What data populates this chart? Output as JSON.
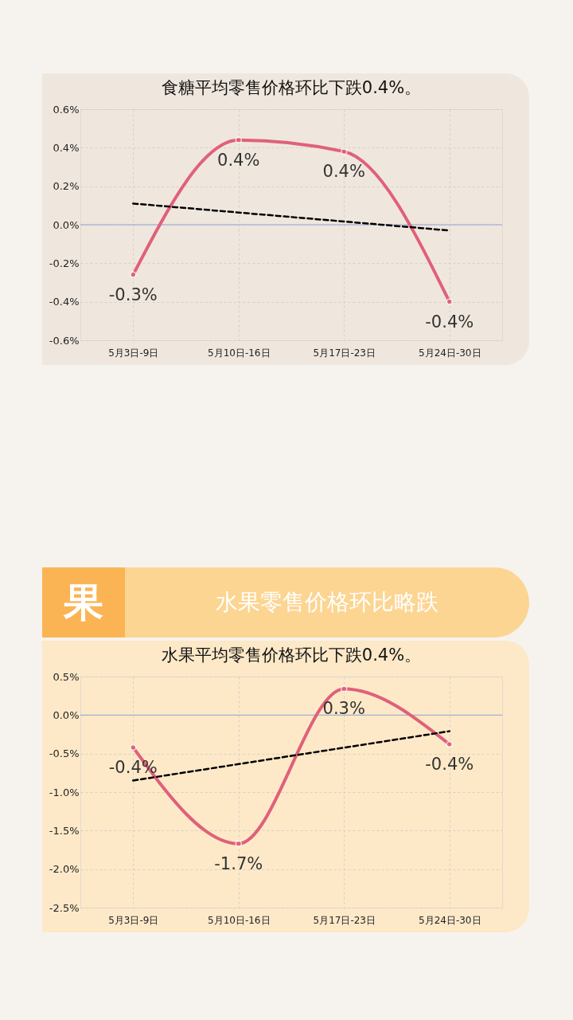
{
  "chart_data": [
    {
      "type": "line",
      "title": "食糖平均零售价格环比下跌0.4%。",
      "categories": [
        "5月3日-9日",
        "5月10日-16日",
        "5月17日-23日",
        "5月24日-30日"
      ],
      "series": [
        {
          "color": "#e0607a",
          "values": [
            -0.26,
            0.44,
            0.38,
            -0.4
          ],
          "value_labels": [
            "-0.3%",
            "0.4%",
            "0.4%",
            "-0.4%"
          ],
          "marker": "circle",
          "line_style": "solid"
        },
        {
          "color": "#000000",
          "values": [
            0.11,
            null,
            null,
            -0.03
          ],
          "marker": "none",
          "line_style": "dashed"
        }
      ],
      "ylim": [
        -0.6,
        0.6
      ],
      "yticks": [
        {
          "value": -0.6,
          "label": "-0.6%"
        },
        {
          "value": -0.4,
          "label": "-0.4%"
        },
        {
          "value": -0.2,
          "label": "-0.2%"
        },
        {
          "value": 0,
          "label": "0.0%"
        },
        {
          "value": 0.2,
          "label": "0.2%"
        },
        {
          "value": 0.4,
          "label": "0.4%"
        },
        {
          "value": 0.6,
          "label": "0.6%"
        }
      ],
      "grid": true,
      "ref_lines": [
        {
          "axis": "y",
          "value": 0,
          "color": "#8fa3d6"
        }
      ]
    },
    {
      "type": "line",
      "title": "水果平均零售价格环比下跌0.4%。",
      "annotations": [
        "果",
        "水果零售价格环比略跌"
      ],
      "categories": [
        "5月3日-9日",
        "5月10日-16日",
        "5月17日-23日",
        "5月24日-30日"
      ],
      "series": [
        {
          "color": "#e0607a",
          "values": [
            -0.42,
            -1.67,
            0.34,
            -0.38
          ],
          "value_labels": [
            "-0.4%",
            "-1.7%",
            "0.3%",
            "-0.4%"
          ],
          "marker": "circle",
          "line_style": "solid"
        },
        {
          "color": "#000000",
          "values": [
            -0.85,
            null,
            null,
            -0.21
          ],
          "marker": "none",
          "line_style": "dashed"
        }
      ],
      "ylim": [
        -2.5,
        0.5
      ],
      "yticks": [
        {
          "value": -2.5,
          "label": "-2.5%"
        },
        {
          "value": -2,
          "label": "-2.0%"
        },
        {
          "value": -1.5,
          "label": "-1.5%"
        },
        {
          "value": -1,
          "label": "-1.0%"
        },
        {
          "value": -0.5,
          "label": "-0.5%"
        },
        {
          "value": 0,
          "label": "0.0%"
        },
        {
          "value": 0.5,
          "label": "0.5%"
        }
      ],
      "grid": true,
      "ref_lines": [
        {
          "axis": "y",
          "value": 0,
          "color": "#8fa3d6"
        }
      ]
    }
  ]
}
